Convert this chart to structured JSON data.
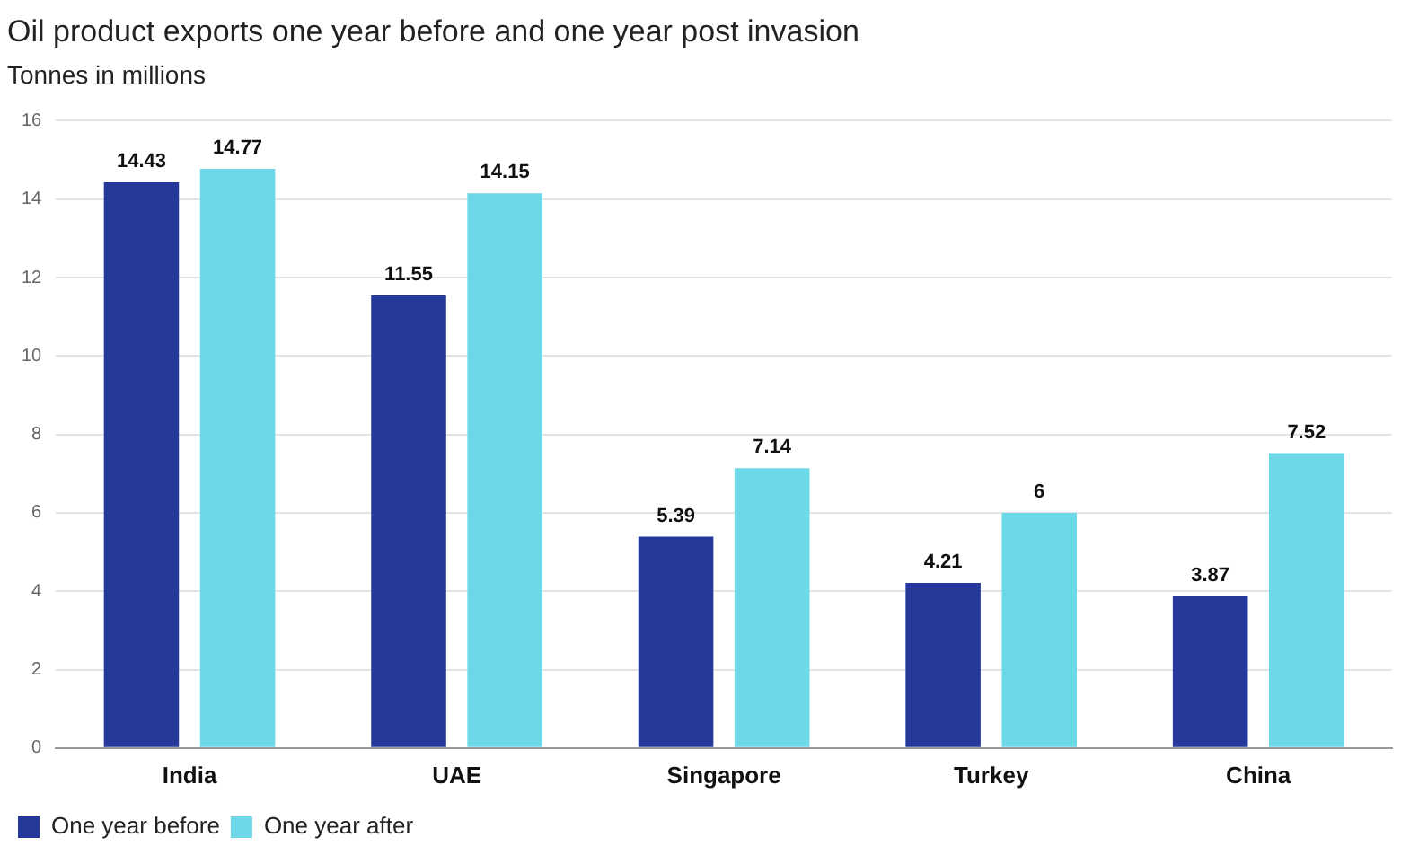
{
  "chart_data": {
    "type": "bar",
    "title": "Oil product exports one year before and one year post invasion",
    "subtitle": "Tonnes in millions",
    "categories": [
      "India",
      "UAE",
      "Singapore",
      "Turkey",
      "China"
    ],
    "series": [
      {
        "name": "One year before",
        "color": "#24399a",
        "values": [
          14.43,
          11.55,
          5.39,
          4.21,
          3.87
        ]
      },
      {
        "name": "One year after",
        "color": "#6dd9e8",
        "values": [
          14.77,
          14.15,
          7.14,
          6,
          7.52
        ]
      }
    ],
    "ylim": [
      0,
      16
    ],
    "yticks": [
      0,
      2,
      4,
      6,
      8,
      10,
      12,
      14,
      16
    ],
    "grid": "y",
    "legend": "bottom left",
    "data_labels": true
  }
}
